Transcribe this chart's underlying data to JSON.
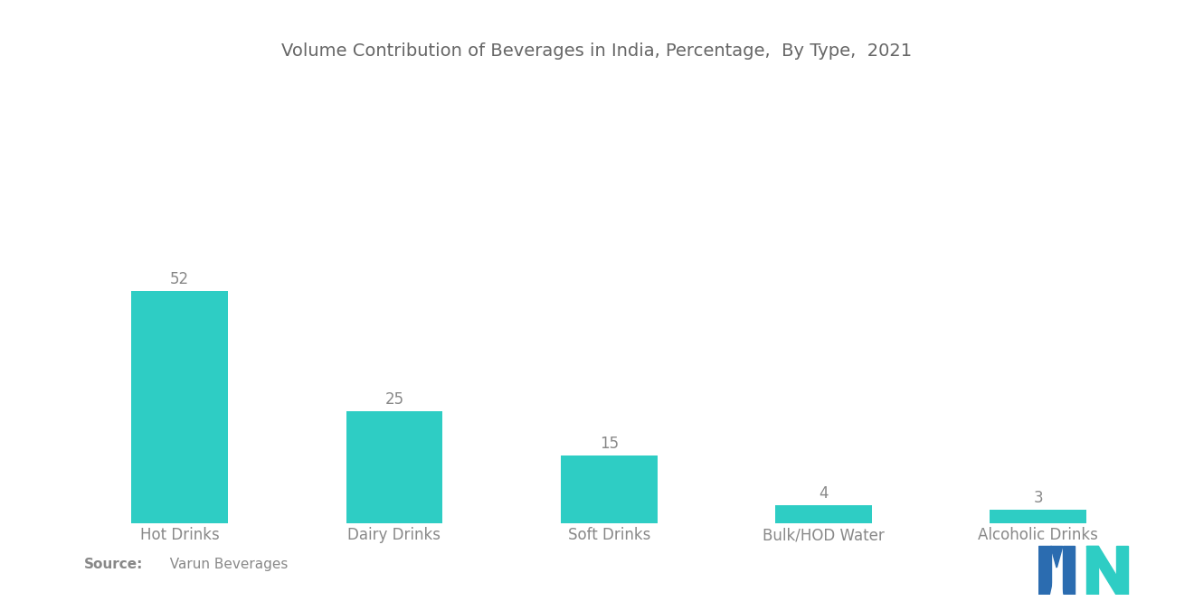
{
  "title": "Volume Contribution of Beverages in India, Percentage,  By Type,  2021",
  "categories": [
    "Hot Drinks",
    "Dairy Drinks",
    "Soft Drinks",
    "Bulk/HOD Water",
    "Alcoholic Drinks"
  ],
  "values": [
    52,
    25,
    15,
    4,
    3
  ],
  "bar_color": "#2ECDC4",
  "background_color": "#FFFFFF",
  "text_color": "#888888",
  "title_color": "#666666",
  "source_bold": "Source:",
  "source_text": "  Varun Beverages",
  "ylim": [
    0,
    70
  ],
  "bar_width": 0.45,
  "label_fontsize": 12,
  "title_fontsize": 14,
  "value_fontsize": 12,
  "source_fontsize": 11,
  "logo_dark_blue": "#2B6CB0",
  "logo_teal": "#2ECDC4"
}
